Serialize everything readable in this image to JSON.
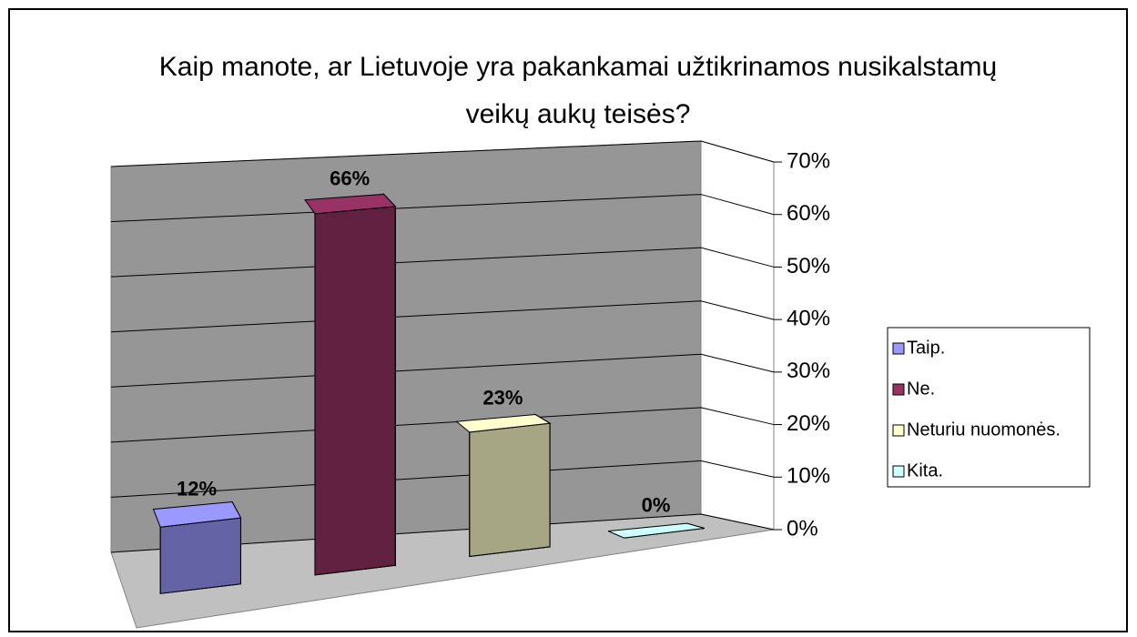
{
  "chart_data": {
    "type": "bar",
    "title": "Kaip manote, ar Lietuvoje yra pakankamai užtikrinamos nusikalstamų veikų aukų teisės?",
    "series": [
      {
        "name": "Taip.",
        "color": "#9999ff",
        "values": [
          12
        ],
        "value_labels": [
          "12%"
        ]
      },
      {
        "name": "Ne.",
        "color": "#993366",
        "values": [
          66
        ],
        "value_labels": [
          "66%"
        ]
      },
      {
        "name": "Neturiu nuomonės.",
        "color": "#ffffcc",
        "values": [
          23
        ],
        "value_labels": [
          "23%"
        ]
      },
      {
        "name": "Kita.",
        "color": "#ccffff",
        "values": [
          0
        ],
        "value_labels": [
          "0%"
        ]
      }
    ],
    "ylim": [
      0,
      70
    ],
    "yticks": [
      {
        "value": 0,
        "label": "0%"
      },
      {
        "value": 10,
        "label": "10%"
      },
      {
        "value": 20,
        "label": "20%"
      },
      {
        "value": 30,
        "label": "30%"
      },
      {
        "value": 40,
        "label": "40%"
      },
      {
        "value": 50,
        "label": "50%"
      },
      {
        "value": 60,
        "label": "60%"
      },
      {
        "value": 70,
        "label": "70%"
      }
    ],
    "grid": true,
    "legend": "right"
  }
}
